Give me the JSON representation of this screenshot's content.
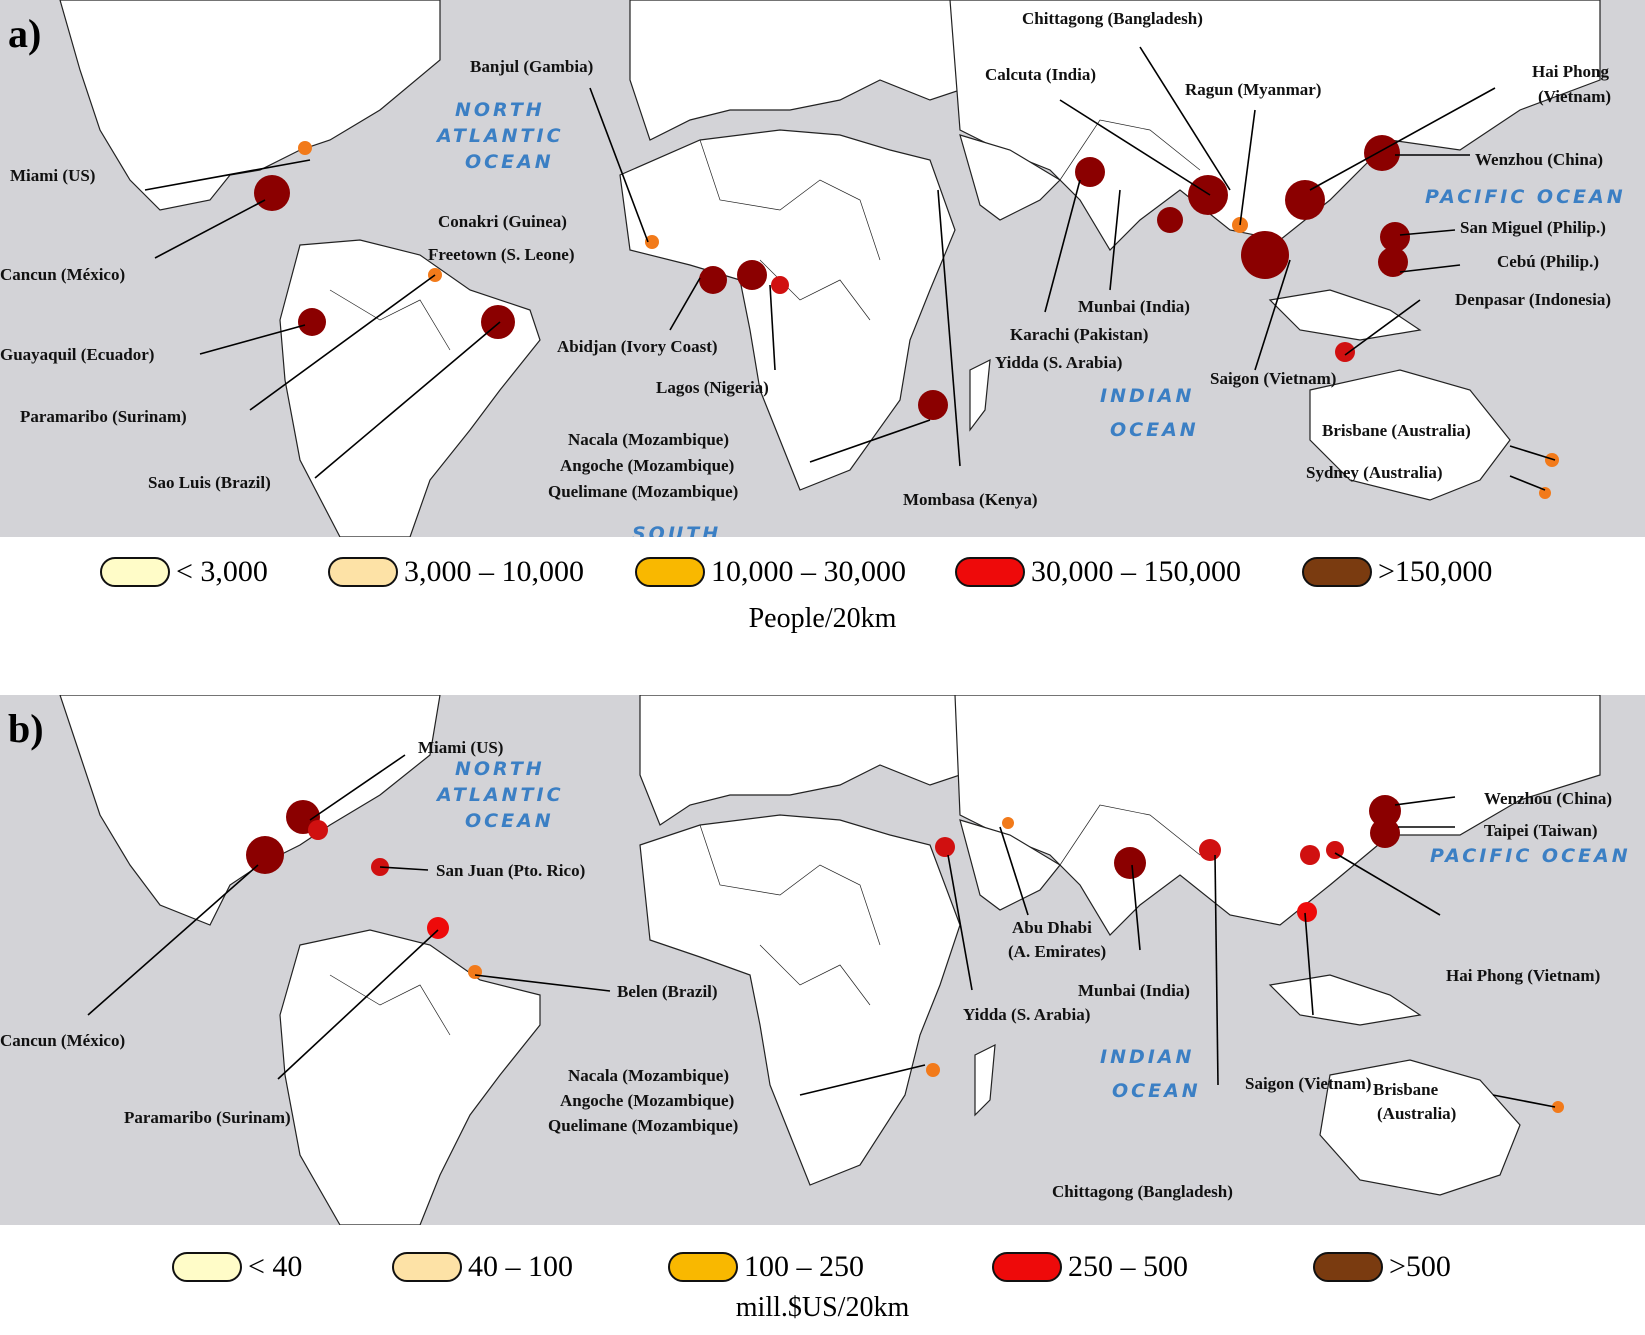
{
  "panel_a": {
    "letter": "a)",
    "oceans": [
      "NORTH",
      "ATLANTIC",
      "OCEAN",
      "INDIAN",
      "OCEAN",
      "PACIFIC OCEAN",
      "SOUTH"
    ],
    "cities": [
      "Miami (US)",
      "Cancun (México)",
      "Guayaquil (Ecuador)",
      "Paramaribo (Surinam)",
      "Sao Luis (Brazil)",
      "Banjul (Gambia)",
      "Conakri (Guinea)",
      "Freetown (S. Leone)",
      "Abidjan (Ivory Coast)",
      "Lagos (Nigeria)",
      "Nacala (Mozambique)",
      "Angoche (Mozambique)",
      "Quelimane (Mozambique)",
      "Mombasa (Kenya)",
      "Yidda (S. Arabia)",
      "Karachi (Pakistan)",
      "Munbai (India)",
      "Calcuta (India)",
      "Chittagong (Bangladesh)",
      "Ragun (Myanmar)",
      "Saigon (Vietnam)",
      "Hai Phong",
      "(Vietnam)",
      "Wenzhou (China)",
      "San Miguel (Philip.)",
      "Cebú (Philip.)",
      "Denpasar (Indonesia)",
      "Brisbane (Australia)",
      "Sydney (Australia)"
    ],
    "legend": [
      "< 3,000",
      "3,000 – 10,000",
      "10,000 – 30,000",
      "30,000 – 150,000",
      ">150,000"
    ],
    "unit": "People/20km"
  },
  "panel_b": {
    "letter": "b)",
    "oceans": [
      "NORTH",
      "ATLANTIC",
      "OCEAN",
      "INDIAN",
      "OCEAN",
      "PACIFIC OCEAN"
    ],
    "cities": [
      "Miami (US)",
      "San Juan (Pto. Rico)",
      "Cancun (México)",
      "Paramaribo (Surinam)",
      "Belen (Brazil)",
      "Nacala (Mozambique)",
      "Angoche (Mozambique)",
      "Quelimane (Mozambique)",
      "Yidda (S. Arabia)",
      "Abu Dhabi",
      "(A. Emirates)",
      "Munbai (India)",
      "Chittagong (Bangladesh)",
      "Saigon (Vietnam)",
      "Wenzhou (China)",
      "Taipei (Taiwan)",
      "Hai Phong (Vietnam)",
      "Brisbane",
      "(Australia)"
    ],
    "legend": [
      "< 40",
      "40 – 100",
      "100 – 250",
      "250 – 500",
      ">500"
    ],
    "unit": "mill.$US/20km"
  },
  "legend_colors": [
    "#fffcc8",
    "#fde2a6",
    "#f9b800",
    "#ee0a0a",
    "#7a3b10"
  ]
}
